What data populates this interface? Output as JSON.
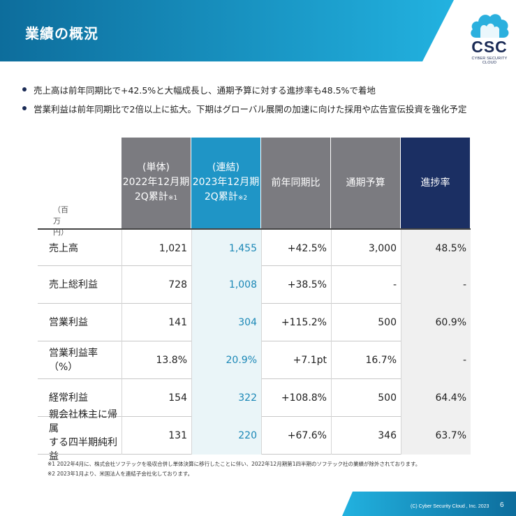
{
  "header": {
    "title": "業績の概況",
    "color_dark": "#0e5f8c",
    "color_light": "#1fa3d4"
  },
  "logo": {
    "text": "CSC",
    "subtext": "CYBER SECURITY CLOUD"
  },
  "bullets": [
    "売上高は前年同期比で+42.5%と大幅成長し、通期予算に対する進捗率も48.5%で着地",
    "営業利益は前年同期比で2倍以上に拡大。下期はグローバル展開の加速に向けた採用や広告宣伝投資を強化予定"
  ],
  "table": {
    "unit": "（百万円）",
    "headers": [
      {
        "lines": [
          "(単体)",
          "2022年12月期"
        ],
        "last": "2Q累計",
        "note": "※1",
        "color": "#7b7b80"
      },
      {
        "lines": [
          "(連結)",
          "2023年12月期"
        ],
        "last": "2Q累計",
        "note": "※2",
        "color": "#1f95c6"
      },
      {
        "lines": [
          "前年同期比"
        ],
        "last": "",
        "note": "",
        "color": "#7b7b80"
      },
      {
        "lines": [
          "通期予算"
        ],
        "last": "",
        "note": "",
        "color": "#7b7b80"
      },
      {
        "lines": [
          "進捗率"
        ],
        "last": "",
        "note": "",
        "color": "#1b2f63"
      }
    ],
    "rows": [
      {
        "label": [
          "売上高"
        ],
        "values": [
          "1,021",
          "1,455",
          "+42.5%",
          "3,000",
          "48.5%"
        ]
      },
      {
        "label": [
          "売上総利益"
        ],
        "values": [
          "728",
          "1,008",
          "+38.5%",
          "-",
          "-"
        ]
      },
      {
        "label": [
          "営業利益"
        ],
        "values": [
          "141",
          "304",
          "+115.2%",
          "500",
          "60.9%"
        ]
      },
      {
        "label": [
          "営業利益率（%）"
        ],
        "values": [
          "13.8%",
          "20.9%",
          "+7.1pt",
          "16.7%",
          "-"
        ]
      },
      {
        "label": [
          "経常利益"
        ],
        "values": [
          "154",
          "322",
          "+108.8%",
          "500",
          "64.4%"
        ]
      },
      {
        "label": [
          "親会社株主に帰属",
          "する四半期純利益"
        ],
        "values": [
          "131",
          "220",
          "+67.6%",
          "346",
          "63.7%"
        ]
      }
    ]
  },
  "footnotes": [
    "※1 2022年4月に、株式会社ソフテックを吸収合併し単体決算に移行したことに伴い、2022年12月期第1四半期のソフテック社の業績が除外されております。",
    "※2 2023年1月より、米国法人を連結子会社化しております。"
  ],
  "footer": {
    "copyright": "(C) Cyber Security Cloud , Inc. 2023",
    "page": "6"
  }
}
